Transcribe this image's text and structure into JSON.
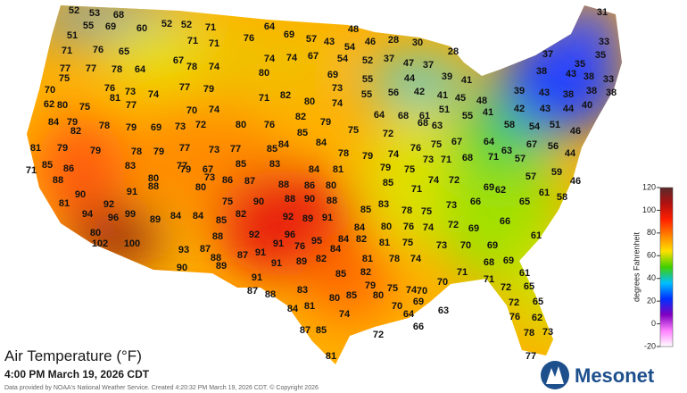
{
  "header": {
    "title": "Air Temperature (°F)",
    "time": "4:00 PM March 19, 2026 CDT",
    "credit": "Data provided by NOAA's National Weather Service. Created 4:20:32 PM March 19, 2026 CDT. © Copyright 2026",
    "logo": "Mesonet"
  },
  "colorbar": {
    "label": "degrees Fahrenheit",
    "lim": [
      -20,
      120
    ],
    "ticks": [
      120,
      100,
      80,
      60,
      40,
      20,
      0,
      -20
    ],
    "colors": [
      "#5a2a2a",
      "#b01010",
      "#ff2000",
      "#ff8000",
      "#ffe000",
      "#40d000",
      "#00c0ff",
      "#0030ff",
      "#8000c0",
      "#ff80ff",
      "#ffffff"
    ]
  },
  "temperatures": [
    52,
    53,
    68,
    55,
    69,
    60,
    52,
    52,
    71,
    64,
    69,
    57,
    43,
    48,
    54,
    46,
    28,
    30,
    28,
    31,
    33,
    51,
    71,
    71,
    76,
    71,
    76,
    65,
    67,
    74,
    74,
    67,
    54,
    52,
    37,
    47,
    37,
    37,
    35,
    35,
    77,
    77,
    78,
    64,
    78,
    74,
    80,
    69,
    55,
    44,
    39,
    41,
    38,
    43,
    38,
    33,
    75,
    81,
    76,
    73,
    74,
    77,
    79,
    70,
    62,
    80,
    75,
    77,
    70,
    74,
    71,
    82,
    80,
    73,
    74,
    55,
    56,
    42,
    41,
    45,
    48,
    39,
    43,
    38,
    38,
    38,
    42,
    43,
    44,
    40,
    84,
    79,
    82,
    78,
    79,
    69,
    73,
    72,
    80,
    76,
    82,
    85,
    84,
    79,
    75,
    64,
    72,
    68,
    61,
    51,
    55,
    68,
    63,
    41,
    58,
    54,
    51,
    46,
    81,
    79,
    79,
    78,
    79,
    77,
    73,
    77,
    85,
    84,
    78,
    79,
    74,
    76,
    75,
    67,
    64,
    63,
    67,
    56,
    71,
    85,
    86,
    83,
    77,
    85,
    83,
    84,
    81,
    79,
    75,
    73,
    71,
    68,
    71,
    57,
    59,
    44,
    80,
    79,
    67,
    73,
    86,
    87,
    88,
    86,
    80,
    85,
    71,
    74,
    72,
    69,
    57,
    46,
    88,
    90,
    92,
    91,
    88,
    80,
    75,
    90,
    88,
    90,
    88,
    85,
    83,
    78,
    75,
    73,
    66,
    62,
    65,
    61,
    58,
    81,
    94,
    96,
    99,
    89,
    84,
    84,
    85,
    82,
    92,
    89,
    91,
    84,
    80,
    76,
    74,
    72,
    69,
    66,
    61,
    80,
    88,
    92,
    96,
    95,
    84,
    82,
    81,
    75,
    73,
    70,
    69,
    102,
    100,
    93,
    87,
    91,
    76,
    84,
    88,
    87,
    91,
    91,
    89,
    82,
    81,
    78,
    74,
    68,
    69,
    90,
    89,
    85,
    82,
    71,
    71,
    61,
    91,
    79,
    75,
    74,
    70,
    72,
    65,
    87,
    88,
    83,
    80,
    85,
    80,
    70,
    70,
    72,
    65,
    69,
    63,
    64,
    84,
    81,
    76,
    62,
    74,
    66,
    72,
    87,
    85,
    78,
    73,
    81,
    77
  ]
}
